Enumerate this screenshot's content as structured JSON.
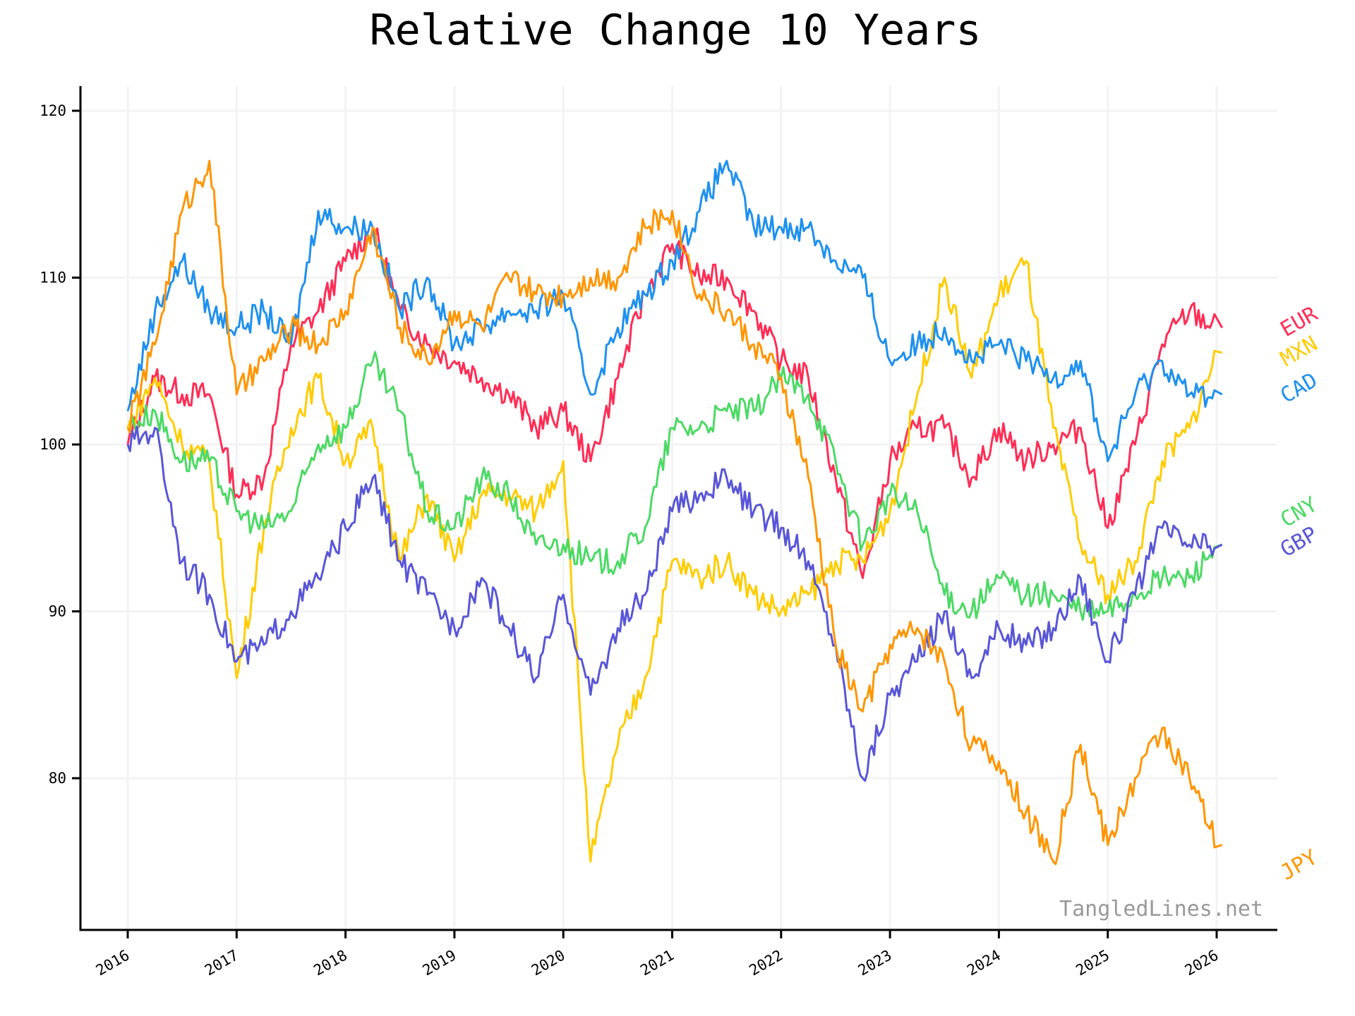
{
  "chart_data": {
    "type": "line",
    "title": "Relative Change 10 Years",
    "xlabel": "",
    "ylabel": "",
    "xlim": [
      2015.8,
      2026.55
    ],
    "ylim": [
      71,
      121.4
    ],
    "grid": true,
    "x_ticks": [
      "2016",
      "2017",
      "2018",
      "2019",
      "2020",
      "2021",
      "2022",
      "2023",
      "2024",
      "2025",
      "2026"
    ],
    "y_ticks": [
      "80",
      "90",
      "100",
      "110",
      "120"
    ],
    "watermark": "TangledLines.net",
    "x": [
      2016.0,
      2016.25,
      2016.5,
      2016.75,
      2017.0,
      2017.25,
      2017.5,
      2017.75,
      2018.0,
      2018.25,
      2018.5,
      2018.75,
      2019.0,
      2019.25,
      2019.5,
      2019.75,
      2020.0,
      2020.25,
      2020.5,
      2020.75,
      2021.0,
      2021.25,
      2021.5,
      2021.75,
      2022.0,
      2022.25,
      2022.5,
      2022.75,
      2023.0,
      2023.25,
      2023.5,
      2023.75,
      2024.0,
      2024.25,
      2024.5,
      2024.75,
      2025.0,
      2025.25,
      2025.5,
      2025.75,
      2026.0
    ],
    "series": [
      {
        "name": "EUR",
        "color": "#ff2d55",
        "values": [
          100,
          104,
          103,
          103,
          97,
          98,
          106,
          108,
          111,
          113,
          108,
          106,
          105,
          104,
          103,
          101,
          102,
          99,
          104,
          109,
          112,
          110,
          110,
          108,
          105,
          104,
          98,
          92,
          99,
          101,
          101,
          98,
          101,
          99,
          100,
          101,
          95,
          100,
          106,
          108,
          107
        ]
      },
      {
        "name": "MXN",
        "color": "#ffcc00",
        "values": [
          101,
          104,
          100,
          99,
          86,
          95,
          101,
          104,
          99,
          101,
          93,
          97,
          93,
          97,
          97,
          96,
          99,
          75,
          82,
          86,
          93,
          92,
          93,
          91,
          90,
          91,
          93,
          93,
          96,
          103,
          110,
          104,
          109,
          111,
          101,
          94,
          91,
          93,
          99,
          101,
          105.5
        ]
      },
      {
        "name": "CAD",
        "color": "#1e90ee",
        "values": [
          102,
          108,
          111,
          108,
          107,
          108,
          106,
          114,
          113,
          113,
          108,
          110,
          106,
          107,
          108,
          108,
          109,
          103,
          107,
          109,
          111,
          114,
          117,
          113,
          113,
          113,
          111,
          110,
          105,
          106,
          107,
          105,
          106,
          105,
          104,
          105,
          99,
          103,
          105,
          103,
          103
        ]
      },
      {
        "name": "CNY",
        "color": "#4cd964",
        "values": [
          101,
          102,
          99,
          99,
          96,
          95,
          96,
          100,
          101,
          105,
          102,
          96,
          95,
          98,
          97,
          94,
          94,
          93,
          93,
          95,
          101,
          101,
          102,
          102,
          104,
          103,
          99,
          94,
          97,
          96,
          91,
          90,
          92,
          91,
          91,
          90,
          90,
          91,
          92,
          92,
          94
        ]
      },
      {
        "name": "GBP",
        "color": "#5856d6",
        "values": [
          100,
          101,
          93,
          91,
          87,
          88,
          90,
          92,
          95,
          98,
          93,
          91,
          89,
          92,
          89,
          86,
          91,
          85,
          89,
          91,
          96,
          97,
          98,
          96,
          95,
          93,
          88,
          80,
          85,
          87,
          90,
          86,
          89,
          88,
          89,
          92,
          87,
          91,
          95,
          94,
          94
        ]
      },
      {
        "name": "JPY",
        "color": "#ff9500",
        "values": [
          101,
          106,
          114,
          117,
          103,
          105,
          107,
          106,
          108,
          113,
          107,
          105,
          108,
          107,
          110,
          109,
          109,
          110,
          110,
          113,
          114,
          109,
          108,
          106,
          104,
          98,
          88,
          84,
          88,
          89,
          87,
          82,
          81,
          78,
          75,
          82,
          76,
          80,
          83,
          80,
          76
        ]
      }
    ]
  }
}
